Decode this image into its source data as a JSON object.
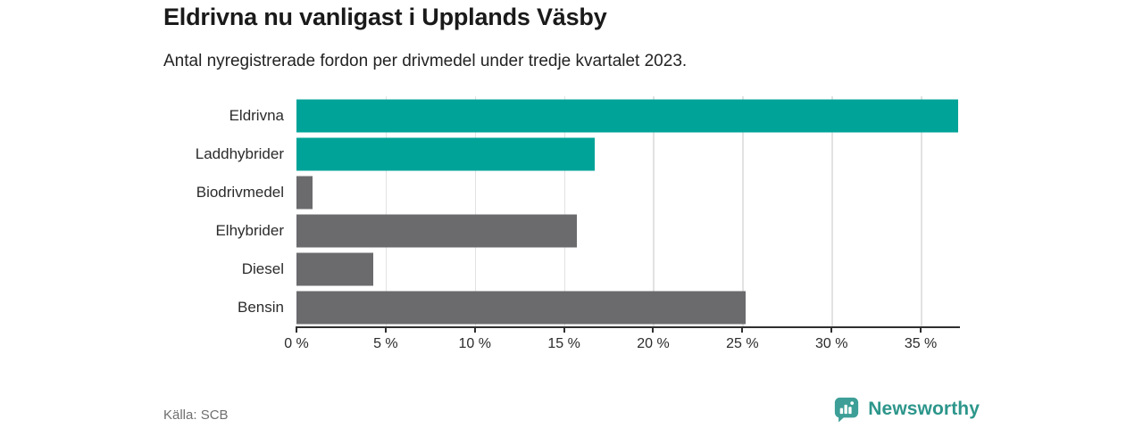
{
  "header": {
    "title": "Eldrivna nu vanligast i Upplands Väsby",
    "subtitle": "Antal nyregistrerade fordon per drivmedel under tredje kvartalet 2023."
  },
  "chart_data": {
    "type": "bar",
    "orientation": "horizontal",
    "title": "Eldrivna nu vanligast i Upplands Väsby",
    "subtitle": "Antal nyregistrerade fordon per drivmedel under tredje kvartalet 2023.",
    "categories": [
      "Eldrivna",
      "Laddhybrider",
      "Biodrivmedel",
      "Elhybrider",
      "Diesel",
      "Bensin"
    ],
    "values": [
      37.1,
      16.7,
      0.9,
      15.7,
      4.3,
      25.2
    ],
    "unit": "%",
    "bar_colors": [
      "#00a398",
      "#00a398",
      "#6b6b6e",
      "#6b6b6e",
      "#6b6b6e",
      "#6b6b6e"
    ],
    "xlabel": "",
    "ylabel": "",
    "xlim": [
      0,
      37.2
    ],
    "xticks": [
      0,
      5,
      10,
      15,
      20,
      25,
      30,
      35
    ],
    "xtick_labels": [
      "0 %",
      "5 %",
      "10 %",
      "15 %",
      "20 %",
      "25 %",
      "30 %",
      "35 %"
    ],
    "grid": "vertical",
    "legend": "none"
  },
  "footer": {
    "source": "Källa: SCB",
    "brand": "Newsworthy",
    "brand_icon": "bar-chart-speech-bubble-icon"
  },
  "colors": {
    "accent_teal": "#00a398",
    "bar_gray": "#6b6b6e",
    "gridline": "#e2e2e2",
    "axis": "#2f2f2f",
    "title_text": "#1a1a1a",
    "muted_text": "#6f6f6f",
    "brand_teal": "#2d968b"
  }
}
